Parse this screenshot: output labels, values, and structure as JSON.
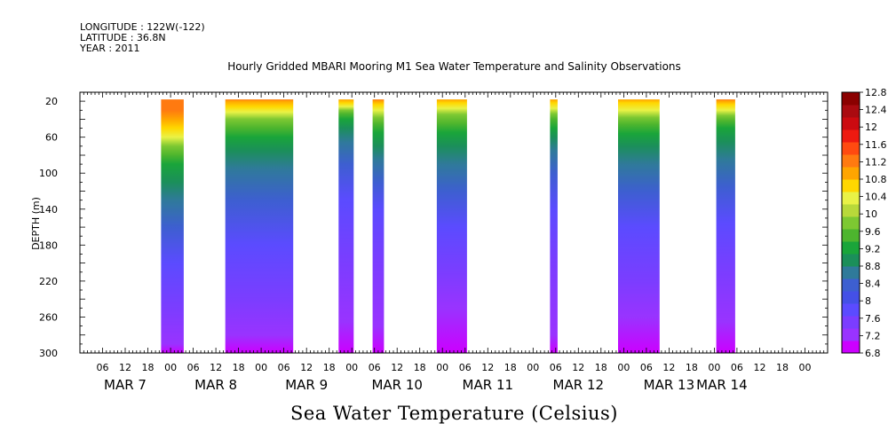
{
  "header": {
    "longitude": "LONGITUDE : 122W(-122)",
    "latitude": "LATITUDE : 36.8N",
    "year": "YEAR : 2011"
  },
  "chart_data": {
    "type": "heatmap",
    "title": "Hourly Gridded MBARI Mooring M1 Sea Water Temperature and Salinity Observations",
    "bottom_title": "Sea Water Temperature (Celsius)",
    "ylabel": "DEPTH (m)",
    "ylim": [
      300,
      10
    ],
    "y_ticks": [
      20,
      60,
      100,
      140,
      180,
      220,
      260,
      300
    ],
    "xlim_hours": [
      0,
      198
    ],
    "x_hour_ticks": [
      {
        "h": 6,
        "label": "06"
      },
      {
        "h": 12,
        "label": "12"
      },
      {
        "h": 18,
        "label": "18"
      },
      {
        "h": 24,
        "label": "00"
      },
      {
        "h": 30,
        "label": "06"
      },
      {
        "h": 36,
        "label": "12"
      },
      {
        "h": 42,
        "label": "18"
      },
      {
        "h": 48,
        "label": "00"
      },
      {
        "h": 54,
        "label": "06"
      },
      {
        "h": 60,
        "label": "12"
      },
      {
        "h": 66,
        "label": "18"
      },
      {
        "h": 72,
        "label": "00"
      },
      {
        "h": 78,
        "label": "06"
      },
      {
        "h": 84,
        "label": "12"
      },
      {
        "h": 90,
        "label": "18"
      },
      {
        "h": 96,
        "label": "00"
      },
      {
        "h": 102,
        "label": "06"
      },
      {
        "h": 108,
        "label": "12"
      },
      {
        "h": 114,
        "label": "18"
      },
      {
        "h": 120,
        "label": "00"
      },
      {
        "h": 126,
        "label": "06"
      },
      {
        "h": 132,
        "label": "12"
      },
      {
        "h": 138,
        "label": "18"
      },
      {
        "h": 144,
        "label": "00"
      },
      {
        "h": 150,
        "label": "06"
      },
      {
        "h": 156,
        "label": "12"
      },
      {
        "h": 162,
        "label": "18"
      },
      {
        "h": 168,
        "label": "00"
      },
      {
        "h": 174,
        "label": "06"
      },
      {
        "h": 180,
        "label": "12"
      },
      {
        "h": 186,
        "label": "18"
      },
      {
        "h": 192,
        "label": "00"
      }
    ],
    "date_labels": [
      {
        "h": 12,
        "label": "MAR  7"
      },
      {
        "h": 36,
        "label": "MAR  8"
      },
      {
        "h": 60,
        "label": "MAR  9"
      },
      {
        "h": 84,
        "label": "MAR 10"
      },
      {
        "h": 108,
        "label": "MAR 11"
      },
      {
        "h": 132,
        "label": "MAR 12"
      },
      {
        "h": 156,
        "label": "MAR 13"
      },
      {
        "h": 170,
        "label": "MAR 14"
      }
    ],
    "data_blocks": [
      {
        "start": 21.5,
        "end": 27.5,
        "isotherm_depths": [
          30,
          40,
          50,
          60,
          70,
          80,
          90,
          110,
          130,
          160,
          200,
          250,
          290,
          300
        ]
      },
      {
        "start": 38.5,
        "end": 56.5,
        "isotherm_depths": [
          14,
          20,
          26,
          32,
          40,
          50,
          60,
          75,
          95,
          130,
          180,
          240,
          280,
          300
        ]
      },
      {
        "start": 68.5,
        "end": 72.5,
        "isotherm_depths": [
          14,
          18,
          22,
          26,
          30,
          34,
          40,
          50,
          65,
          90,
          130,
          200,
          265,
          300
        ]
      },
      {
        "start": 77.5,
        "end": 80.5,
        "isotherm_depths": [
          16,
          20,
          24,
          30,
          38,
          45,
          55,
          70,
          85,
          110,
          140,
          200,
          270,
          300
        ]
      },
      {
        "start": 94.5,
        "end": 102.5,
        "isotherm_depths": [
          12,
          16,
          22,
          28,
          35,
          45,
          55,
          70,
          90,
          120,
          160,
          210,
          250,
          300
        ]
      },
      {
        "start": 124.5,
        "end": 126.5,
        "isotherm_depths": [
          14,
          18,
          22,
          28,
          34,
          40,
          50,
          60,
          75,
          100,
          140,
          200,
          280,
          300
        ]
      },
      {
        "start": 142.5,
        "end": 153.5,
        "isotherm_depths": [
          12,
          16,
          22,
          30,
          38,
          46,
          56,
          70,
          90,
          120,
          160,
          220,
          260,
          300
        ]
      },
      {
        "start": 168.5,
        "end": 173.5,
        "isotherm_depths": [
          16,
          20,
          24,
          30,
          36,
          42,
          50,
          65,
          85,
          115,
          155,
          210,
          265,
          300
        ]
      }
    ],
    "colorbar": {
      "min": 6.8,
      "max": 12.8,
      "step": 0.4,
      "labels": [
        "12.8",
        "12.4",
        "12",
        "11.6",
        "11.2",
        "10.8",
        "10.4",
        "10",
        "9.6",
        "9.2",
        "8.8",
        "8.4",
        "8",
        "7.6",
        "7.2",
        "6.8"
      ],
      "colors": [
        "#cc00ff",
        "#9933ff",
        "#7b3dff",
        "#5b4bff",
        "#4450e6",
        "#3d5fd0",
        "#2f7a9a",
        "#1b8f5a",
        "#1aa53a",
        "#4db52e",
        "#7dc832",
        "#b8d93a",
        "#e9f246",
        "#ffd700",
        "#ffa500",
        "#ff7a10",
        "#ff4a10",
        "#ee1a10",
        "#cc0a10",
        "#aa0a10",
        "#8b0000"
      ]
    },
    "grid": false
  }
}
